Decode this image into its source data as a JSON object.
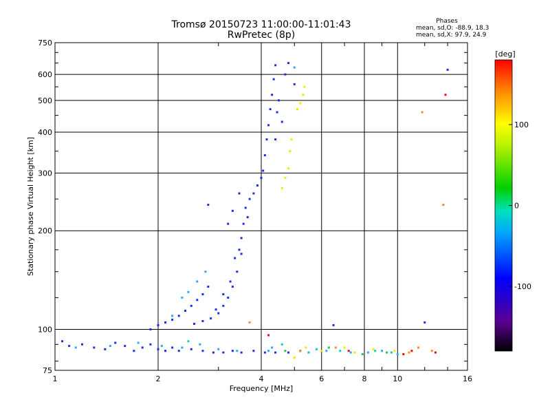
{
  "chart_data": {
    "type": "scatter",
    "title": "Tromsø 20150723 11:00:00-11:01:43",
    "subtitle": "RwPretec (8p)",
    "info": {
      "heading": "Phases",
      "line1": "mean, sd,O: -88.9, 18.3",
      "line2": "mean, sd,X:  97.9, 24.9"
    },
    "xlabel": "Frequency [MHz]",
    "ylabel": "Stationary phase Virtual Height [km]",
    "x_scale": "log",
    "y_scale": "log",
    "xlim": [
      1,
      16
    ],
    "ylim": [
      75,
      750
    ],
    "x_ticks": [
      1,
      2,
      4,
      6,
      8,
      10,
      16
    ],
    "x_tick_labels": [
      "1",
      "2",
      "4",
      "6",
      "8",
      "10",
      "16"
    ],
    "y_ticks": [
      75,
      100,
      200,
      300,
      400,
      500,
      600,
      750
    ],
    "y_tick_labels": [
      "75",
      "100",
      "200",
      "300",
      "400",
      "500",
      "600",
      "750"
    ],
    "grid": true,
    "colorbar": {
      "label": "[deg]",
      "range": [
        -180,
        180
      ],
      "ticks": [
        100,
        0,
        -100
      ],
      "tick_labels": [
        "100",
        "0",
        "-100"
      ]
    },
    "series": [
      {
        "color": "#1a2ee6",
        "points": [
          [
            1.05,
            92
          ],
          [
            1.1,
            89
          ],
          [
            1.2,
            90
          ],
          [
            1.3,
            88
          ],
          [
            1.4,
            87
          ],
          [
            1.5,
            91
          ],
          [
            1.6,
            89
          ],
          [
            1.7,
            86
          ],
          [
            1.8,
            88
          ],
          [
            1.9,
            90
          ],
          [
            2.0,
            87
          ],
          [
            2.1,
            86
          ],
          [
            2.2,
            88
          ],
          [
            2.3,
            86
          ],
          [
            2.5,
            87
          ],
          [
            2.7,
            86
          ],
          [
            2.9,
            85
          ],
          [
            3.1,
            85
          ],
          [
            3.3,
            86
          ],
          [
            3.5,
            85
          ],
          [
            3.8,
            86
          ],
          [
            4.1,
            85
          ],
          [
            4.4,
            85
          ],
          [
            4.8,
            85
          ],
          [
            5.2,
            86
          ],
          [
            1.9,
            100
          ],
          [
            2.0,
            103
          ],
          [
            2.1,
            105
          ],
          [
            2.2,
            107
          ],
          [
            2.3,
            110
          ],
          [
            2.4,
            114
          ],
          [
            2.5,
            118
          ],
          [
            2.6,
            123
          ],
          [
            2.7,
            128
          ],
          [
            2.8,
            135
          ],
          [
            2.55,
            104
          ],
          [
            2.7,
            106
          ],
          [
            2.85,
            108
          ],
          [
            3.0,
            112
          ],
          [
            3.1,
            118
          ],
          [
            3.2,
            125
          ],
          [
            3.3,
            135
          ],
          [
            3.4,
            150
          ],
          [
            3.5,
            170
          ],
          [
            3.5,
            190
          ],
          [
            3.55,
            210
          ],
          [
            3.6,
            235
          ],
          [
            3.7,
            250
          ],
          [
            3.8,
            260
          ],
          [
            3.9,
            275
          ],
          [
            4.0,
            290
          ],
          [
            4.05,
            305
          ],
          [
            4.1,
            340
          ],
          [
            4.15,
            380
          ],
          [
            4.2,
            420
          ],
          [
            4.25,
            470
          ],
          [
            4.3,
            520
          ],
          [
            4.35,
            580
          ],
          [
            4.4,
            640
          ],
          [
            4.5,
            500
          ],
          [
            4.6,
            430
          ],
          [
            4.7,
            600
          ],
          [
            4.8,
            650
          ],
          [
            5.0,
            560
          ],
          [
            4.4,
            380
          ],
          [
            3.65,
            220
          ],
          [
            3.45,
            260
          ],
          [
            3.3,
            230
          ],
          [
            3.2,
            210
          ],
          [
            3.35,
            165
          ],
          [
            3.45,
            175
          ],
          [
            2.95,
            115
          ],
          [
            3.1,
            128
          ],
          [
            3.25,
            140
          ],
          [
            4.45,
            460
          ],
          [
            2.8,
            240
          ],
          [
            12.0,
            105
          ],
          [
            14.0,
            620
          ],
          [
            6.5,
            103
          ]
        ]
      },
      {
        "color": "#29a8ff",
        "points": [
          [
            1.15,
            88
          ],
          [
            1.45,
            89
          ],
          [
            1.75,
            91
          ],
          [
            2.05,
            89
          ],
          [
            2.35,
            88
          ],
          [
            2.65,
            90
          ],
          [
            3.0,
            87
          ],
          [
            3.4,
            86
          ],
          [
            4.2,
            86
          ],
          [
            2.35,
            125
          ],
          [
            2.45,
            130
          ],
          [
            2.6,
            140
          ],
          [
            2.75,
            150
          ],
          [
            2.2,
            110
          ],
          [
            4.3,
            88
          ],
          [
            5.5,
            85
          ],
          [
            6.2,
            86
          ],
          [
            7.3,
            85
          ],
          [
            8.2,
            85
          ],
          [
            9.0,
            86
          ],
          [
            10.0,
            84
          ],
          [
            5.0,
            630
          ]
        ]
      },
      {
        "color": "#00d2c4",
        "points": [
          [
            2.45,
            92
          ],
          [
            4.6,
            90
          ],
          [
            5.8,
            87
          ],
          [
            6.8,
            86
          ],
          [
            8.6,
            86
          ],
          [
            9.6,
            85
          ]
        ]
      },
      {
        "color": "#20c64a",
        "points": [
          [
            4.7,
            86
          ],
          [
            6.3,
            88
          ],
          [
            7.9,
            84
          ],
          [
            9.3,
            85
          ]
        ]
      },
      {
        "color": "#f0e800",
        "points": [
          [
            4.6,
            270
          ],
          [
            4.7,
            290
          ],
          [
            4.8,
            310
          ],
          [
            4.85,
            350
          ],
          [
            4.9,
            380
          ],
          [
            5.2,
            490
          ],
          [
            5.3,
            520
          ],
          [
            5.35,
            550
          ],
          [
            5.1,
            470
          ],
          [
            5.0,
            82
          ],
          [
            5.4,
            88
          ],
          [
            6.0,
            86
          ],
          [
            7.0,
            88
          ],
          [
            7.5,
            85
          ],
          [
            8.5,
            87
          ],
          [
            9.8,
            86
          ]
        ]
      },
      {
        "color": "#ff8c1a",
        "points": [
          [
            3.7,
            105
          ],
          [
            5.2,
            86
          ],
          [
            6.6,
            88
          ],
          [
            10.8,
            85
          ],
          [
            11.5,
            88
          ],
          [
            12.6,
            86
          ],
          [
            11.8,
            460
          ],
          [
            13.6,
            240
          ]
        ]
      },
      {
        "color": "#e01010",
        "points": [
          [
            4.2,
            96
          ],
          [
            7.2,
            86
          ],
          [
            10.4,
            84
          ],
          [
            11.0,
            86
          ],
          [
            12.9,
            85
          ],
          [
            13.8,
            520
          ]
        ]
      }
    ]
  }
}
